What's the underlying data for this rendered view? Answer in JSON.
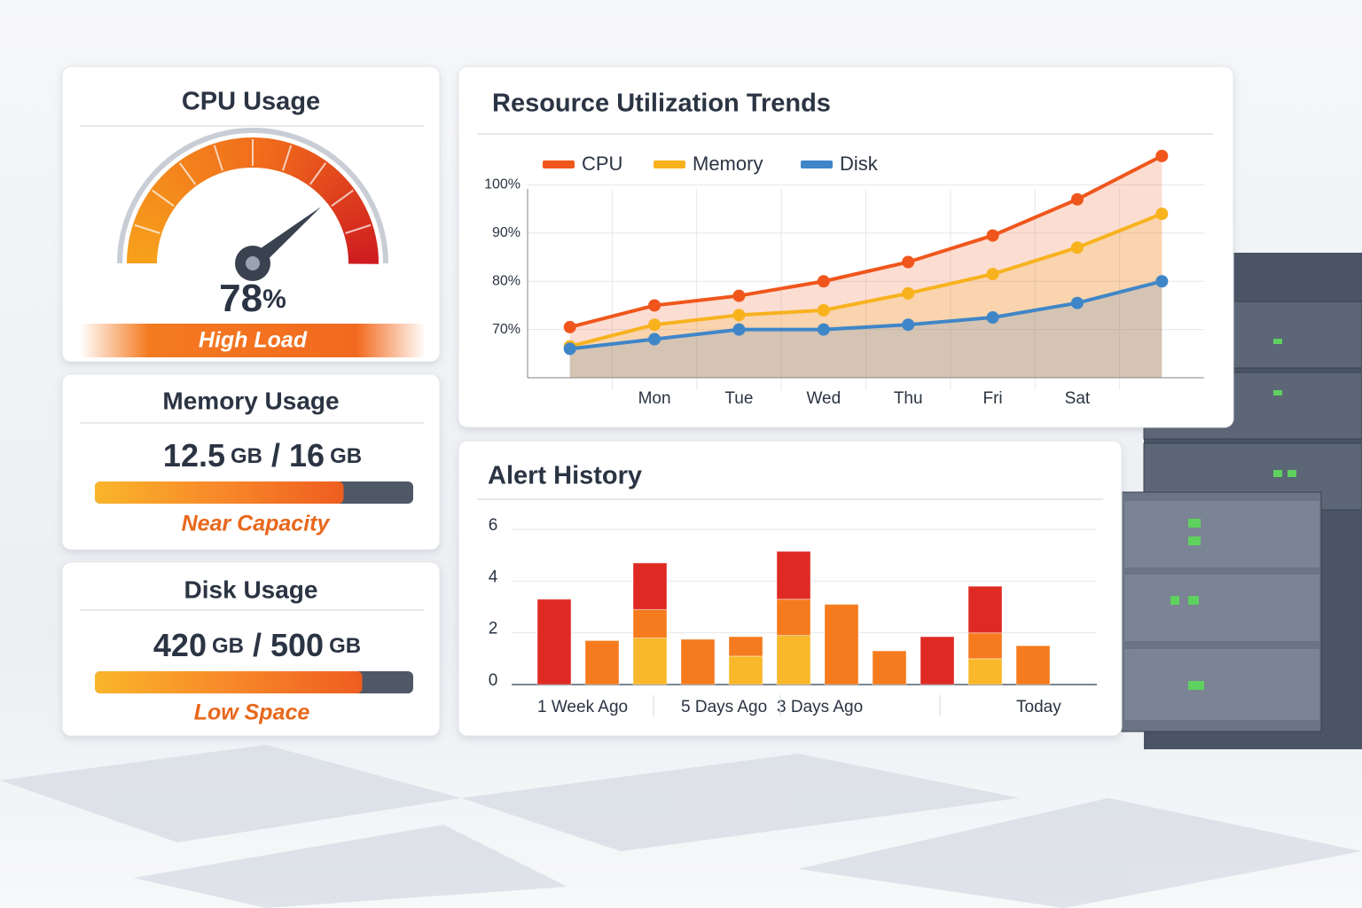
{
  "cpu": {
    "title": "CPU Usage",
    "value": 78,
    "unit": "%",
    "range": [
      0,
      100
    ],
    "status": "High Load"
  },
  "memory": {
    "title": "Memory Usage",
    "used": 12.5,
    "total": 16,
    "unit": "GB",
    "separator": "/",
    "status": "Near Capacity"
  },
  "disk": {
    "title": "Disk Usage",
    "used": 420,
    "total": 500,
    "unit": "GB",
    "separator": "/",
    "status": "Low Space"
  },
  "chart_data": [
    {
      "type": "line",
      "title": "Resource Utilization Trends",
      "categories": [
        null,
        "Mon",
        "Tue",
        "Wed",
        "Thu",
        "Fri",
        "Sat",
        null
      ],
      "series": [
        {
          "name": "CPU",
          "color": "#f0561c",
          "values": [
            70.5,
            75,
            77,
            80,
            84,
            89.5,
            97,
            106
          ]
        },
        {
          "name": "Memory",
          "color": "#f7b21e",
          "values": [
            66.5,
            71,
            73,
            74,
            77.5,
            81.5,
            87,
            94
          ]
        },
        {
          "name": "Disk",
          "color": "#3f86c8",
          "values": [
            66,
            68,
            70,
            70,
            71,
            72.5,
            75.5,
            80
          ]
        }
      ],
      "ylim": [
        60,
        108
      ],
      "yticks": [
        {
          "value": 70,
          "label": "70%"
        },
        {
          "value": 80,
          "label": "80%"
        },
        {
          "value": 90,
          "label": "90%"
        },
        {
          "value": 100,
          "label": "100%"
        }
      ],
      "grid": true,
      "area": true,
      "legend": "top"
    },
    {
      "type": "bar",
      "title": "Alert History",
      "stacked": true,
      "categories": [
        "1 Week Ago",
        null,
        null,
        "5 Days Ago",
        null,
        "3 Days Ago",
        null,
        null,
        null,
        null,
        "Today"
      ],
      "series": [
        {
          "color": "#f9b72a",
          "values": [
            0,
            0,
            1.8,
            0,
            1.1,
            1.9,
            0,
            0,
            0,
            1,
            0
          ]
        },
        {
          "color": "#f57b1e",
          "values": [
            0,
            1.7,
            1.1,
            1.75,
            0.75,
            1.4,
            3.1,
            1.3,
            0,
            1,
            1.5
          ]
        },
        {
          "color": "#df2a24",
          "values": [
            3.3,
            0,
            1.8,
            0,
            0,
            1.85,
            0,
            0,
            1.85,
            1.8,
            0
          ]
        }
      ],
      "ylim": [
        0,
        6
      ],
      "yticks": [
        0,
        2,
        4,
        6
      ],
      "grid": true
    }
  ]
}
